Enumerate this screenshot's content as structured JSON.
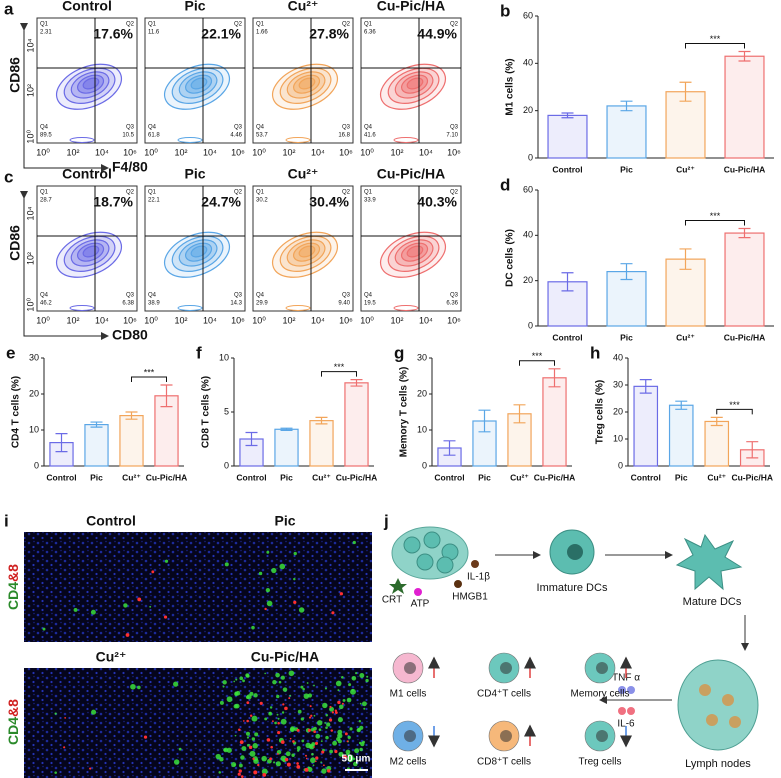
{
  "panel_a": {
    "label": "a",
    "y_label": "CD86",
    "x_label": "F4/80",
    "x_ticks": [
      "10⁰",
      "10²",
      "10⁴",
      "10⁶"
    ],
    "y_ticks": [
      "10⁰",
      "10²",
      "10⁴"
    ],
    "quadrants": [
      "Q1",
      "Q2",
      "Q3",
      "Q4"
    ],
    "plots": [
      {
        "title": "Control",
        "percent": "17.6%",
        "q1": "2.31",
        "q3": "10.5",
        "q4": "89.5",
        "color": "#6b6be6"
      },
      {
        "title": "Pic",
        "percent": "22.1%",
        "q1": "11.6",
        "q3": "4.46",
        "q4": "61.8",
        "color": "#5aa6e6"
      },
      {
        "title": "Cu²⁺",
        "percent": "27.8%",
        "q1": "1.66",
        "q3": "16.8",
        "q4": "53.7",
        "color": "#f2a55a"
      },
      {
        "title": "Cu-Pic/HA",
        "percent": "44.9%",
        "q1": "6.36",
        "q3": "7.10",
        "q4": "41.6",
        "color": "#ee6f6f"
      }
    ]
  },
  "panel_c": {
    "label": "c",
    "y_label": "CD86",
    "x_label": "CD80",
    "x_ticks": [
      "10⁰",
      "10²",
      "10⁴",
      "10⁶"
    ],
    "y_ticks": [
      "10⁰",
      "10²",
      "10⁴"
    ],
    "quadrants": [
      "Q1",
      "Q2",
      "Q3",
      "Q4"
    ],
    "plots": [
      {
        "title": "Control",
        "percent": "18.7%",
        "q1": "28.7",
        "q3": "6.38",
        "q4": "46.2",
        "color": "#6b6be6"
      },
      {
        "title": "Pic",
        "percent": "24.7%",
        "q1": "22.1",
        "q3": "14.3",
        "q4": "38.9",
        "color": "#5aa6e6"
      },
      {
        "title": "Cu²⁺",
        "percent": "30.4%",
        "q1": "30.2",
        "q3": "9.40",
        "q4": "29.9",
        "color": "#f2a55a"
      },
      {
        "title": "Cu-Pic/HA",
        "percent": "40.3%",
        "q1": "33.9",
        "q3": "6.36",
        "q4": "19.5",
        "color": "#ee6f6f"
      }
    ]
  },
  "chart_data": [
    {
      "type": "bar",
      "panel": "b",
      "y_label": "M1 cells (%)",
      "categories": [
        "Control",
        "Pic",
        "Cu²⁺",
        "Cu-Pic/HA"
      ],
      "values": [
        18,
        22,
        28,
        43
      ],
      "errors": [
        1,
        2,
        4,
        2
      ],
      "colors": [
        "#6b6be6",
        "#5aa6e6",
        "#f2a55a",
        "#ee6f6f"
      ],
      "ylim": [
        0,
        60
      ],
      "yticks": [
        0,
        20,
        40,
        60
      ],
      "significance": {
        "pair": [
          2,
          3
        ],
        "label": "***"
      }
    },
    {
      "type": "bar",
      "panel": "d",
      "y_label": "DC cells (%)",
      "categories": [
        "Control",
        "Pic",
        "Cu²⁺",
        "Cu-Pic/HA"
      ],
      "values": [
        19.5,
        24,
        29.5,
        41
      ],
      "errors": [
        4,
        3.5,
        4.5,
        2
      ],
      "colors": [
        "#6b6be6",
        "#5aa6e6",
        "#f2a55a",
        "#ee6f6f"
      ],
      "ylim": [
        0,
        60
      ],
      "yticks": [
        0,
        20,
        40,
        60
      ],
      "significance": {
        "pair": [
          2,
          3
        ],
        "label": "***"
      }
    },
    {
      "type": "bar",
      "panel": "e",
      "y_label": "CD4 T cells (%)",
      "categories": [
        "Control",
        "Pic",
        "Cu²⁺",
        "Cu-Pic/HA"
      ],
      "values": [
        6.5,
        11.5,
        14,
        19.5
      ],
      "errors": [
        2.5,
        0.7,
        1,
        3
      ],
      "colors": [
        "#6b6be6",
        "#5aa6e6",
        "#f2a55a",
        "#ee6f6f"
      ],
      "ylim": [
        0,
        30
      ],
      "yticks": [
        0,
        10,
        20,
        30
      ],
      "significance": {
        "pair": [
          2,
          3
        ],
        "label": "***"
      }
    },
    {
      "type": "bar",
      "panel": "f",
      "y_label": "CD8 T cells (%)",
      "categories": [
        "Control",
        "Pic",
        "Cu²⁺",
        "Cu-Pic/HA"
      ],
      "values": [
        2.5,
        3.4,
        4.2,
        7.7
      ],
      "errors": [
        0.6,
        0.1,
        0.3,
        0.3
      ],
      "colors": [
        "#6b6be6",
        "#5aa6e6",
        "#f2a55a",
        "#ee6f6f"
      ],
      "ylim": [
        0,
        10
      ],
      "yticks": [
        0,
        5,
        10
      ],
      "significance": {
        "pair": [
          2,
          3
        ],
        "label": "***"
      }
    },
    {
      "type": "bar",
      "panel": "g",
      "y_label": "Memory T cells (%)",
      "categories": [
        "Control",
        "Pic",
        "Cu²⁺",
        "Cu-Pic/HA"
      ],
      "values": [
        5,
        12.5,
        14.5,
        24.5
      ],
      "errors": [
        2,
        3,
        2.5,
        2.5
      ],
      "colors": [
        "#6b6be6",
        "#5aa6e6",
        "#f2a55a",
        "#ee6f6f"
      ],
      "ylim": [
        0,
        30
      ],
      "yticks": [
        0,
        10,
        20,
        30
      ],
      "significance": {
        "pair": [
          2,
          3
        ],
        "label": "***"
      }
    },
    {
      "type": "bar",
      "panel": "h",
      "y_label": "Treg cells (%)",
      "categories": [
        "Control",
        "Pic",
        "Cu²⁺",
        "Cu-Pic/HA"
      ],
      "values": [
        29.5,
        22.5,
        16.5,
        6
      ],
      "errors": [
        2.5,
        1.5,
        1.5,
        3
      ],
      "colors": [
        "#6b6be6",
        "#5aa6e6",
        "#f2a55a",
        "#ee6f6f"
      ],
      "ylim": [
        0,
        40
      ],
      "yticks": [
        0,
        10,
        20,
        30,
        40
      ],
      "significance": {
        "pair": [
          2,
          3
        ],
        "label": "***"
      }
    }
  ],
  "panel_i": {
    "label": "i",
    "titles": [
      "Control",
      "Pic",
      "Cu²⁺",
      "Cu-Pic/HA"
    ],
    "y_label_green": "CD4",
    "y_label_red": "&8",
    "scale_bar": "50 μm"
  },
  "panel_j": {
    "label": "j",
    "il1b": "IL-1β",
    "crt": "CRT",
    "atp": "ATP",
    "hmgb1": "HMGB1",
    "immature": "Immature DCs",
    "mature": "Mature DCs",
    "lymph": "Lymph nodes",
    "tnf": "TNF α",
    "il6": "IL-6",
    "cells": [
      {
        "name": "M1 cells",
        "trend": "up"
      },
      {
        "name": "CD4⁺T cells",
        "trend": "up"
      },
      {
        "name": "Memory cells",
        "trend": "up"
      },
      {
        "name": "M2 cells",
        "trend": "down"
      },
      {
        "name": "CD8⁺T cells",
        "trend": "up"
      },
      {
        "name": "Treg cells",
        "trend": "down"
      }
    ]
  }
}
